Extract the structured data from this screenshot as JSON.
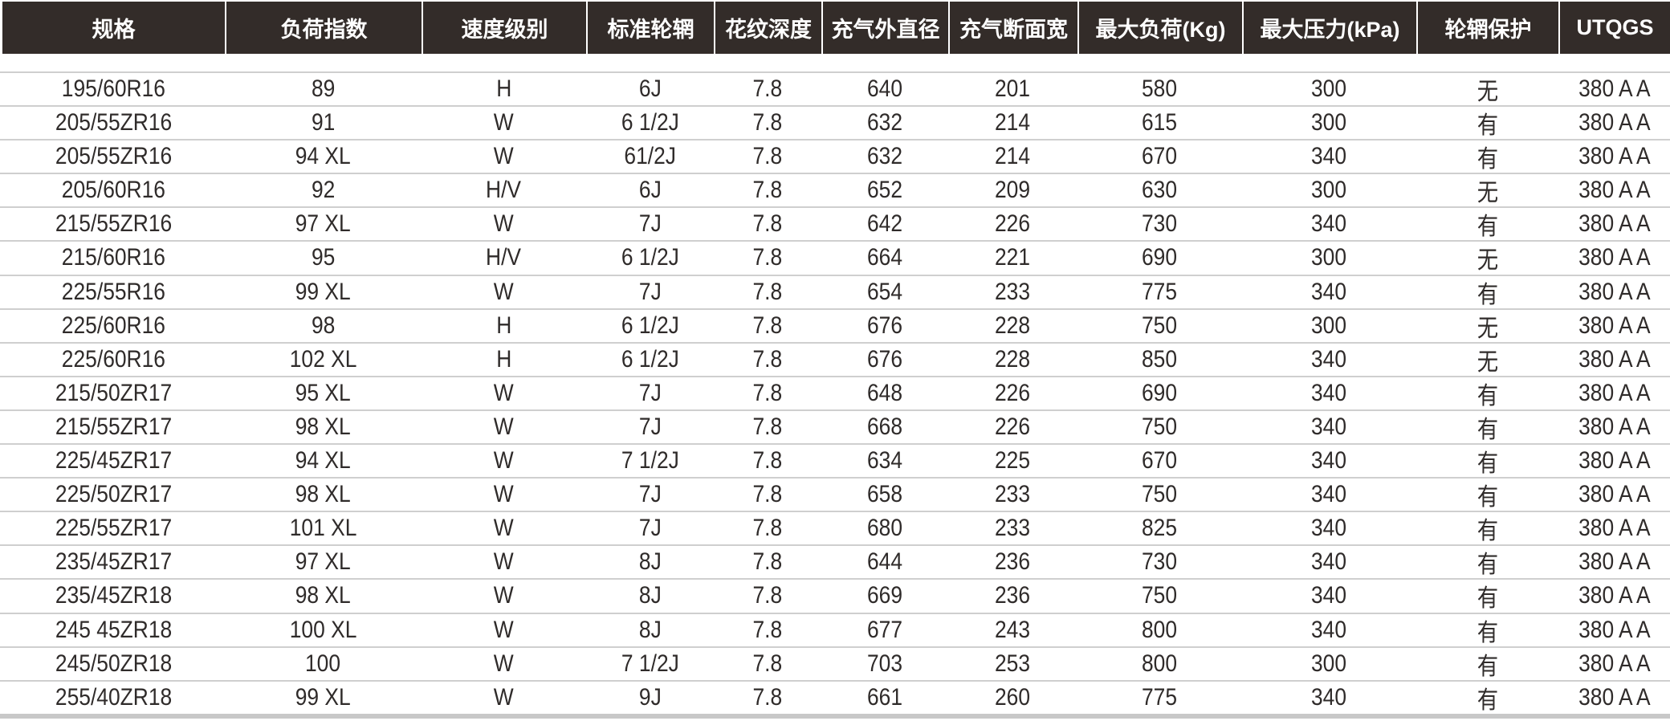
{
  "colors": {
    "header_bg": "#332c29",
    "header_text": "#ffffff",
    "row_line": "#cfcfcf",
    "text": "#2f2b2a"
  },
  "headers": [
    "规格",
    "负荷指数",
    "速度级别",
    "标准轮辋",
    "花纹深度",
    "充气外直径",
    "充气断面宽",
    "最大负荷(Kg)",
    "最大压力(kPa)",
    "轮辋保护",
    "UTQGS"
  ],
  "rows": [
    [
      "195/60R16",
      "89",
      "H",
      "6J",
      "7.8",
      "640",
      "201",
      "580",
      "300",
      "无",
      "380 A A"
    ],
    [
      "205/55ZR16",
      "91",
      "W",
      "6 1/2J",
      "7.8",
      "632",
      "214",
      "615",
      "300",
      "有",
      "380 A A"
    ],
    [
      "205/55ZR16",
      "94 XL",
      "W",
      "61/2J",
      "7.8",
      "632",
      "214",
      "670",
      "340",
      "有",
      "380 A A"
    ],
    [
      "205/60R16",
      "92",
      "H/V",
      "6J",
      "7.8",
      "652",
      "209",
      "630",
      "300",
      "无",
      "380 A A"
    ],
    [
      "215/55ZR16",
      "97 XL",
      "W",
      "7J",
      "7.8",
      "642",
      "226",
      "730",
      "340",
      "有",
      "380 A A"
    ],
    [
      "215/60R16",
      "95",
      "H/V",
      "6 1/2J",
      "7.8",
      "664",
      "221",
      "690",
      "300",
      "无",
      "380 A A"
    ],
    [
      "225/55R16",
      "99 XL",
      "W",
      "7J",
      "7.8",
      "654",
      "233",
      "775",
      "340",
      "有",
      "380 A A"
    ],
    [
      "225/60R16",
      "98",
      "H",
      "6 1/2J",
      "7.8",
      "676",
      "228",
      "750",
      "300",
      "无",
      "380 A A"
    ],
    [
      "225/60R16",
      "102 XL",
      "H",
      "6 1/2J",
      "7.8",
      "676",
      "228",
      "850",
      "340",
      "无",
      "380 A A"
    ],
    [
      "215/50ZR17",
      "95 XL",
      "W",
      "7J",
      "7.8",
      "648",
      "226",
      "690",
      "340",
      "有",
      "380 A A"
    ],
    [
      "215/55ZR17",
      "98 XL",
      "W",
      "7J",
      "7.8",
      "668",
      "226",
      "750",
      "340",
      "有",
      "380 A A"
    ],
    [
      "225/45ZR17",
      "94 XL",
      "W",
      "7 1/2J",
      "7.8",
      "634",
      "225",
      "670",
      "340",
      "有",
      "380 A A"
    ],
    [
      "225/50ZR17",
      "98 XL",
      "W",
      "7J",
      "7.8",
      "658",
      "233",
      "750",
      "340",
      "有",
      "380 A A"
    ],
    [
      "225/55ZR17",
      "101 XL",
      "W",
      "7J",
      "7.8",
      "680",
      "233",
      "825",
      "340",
      "有",
      "380 A A"
    ],
    [
      "235/45ZR17",
      "97 XL",
      "W",
      "8J",
      "7.8",
      "644",
      "236",
      "730",
      "340",
      "有",
      "380 A A"
    ],
    [
      "235/45ZR18",
      "98 XL",
      "W",
      "8J",
      "7.8",
      "669",
      "236",
      "750",
      "340",
      "有",
      "380 A A"
    ],
    [
      "245 45ZR18",
      "100 XL",
      "W",
      "8J",
      "7.8",
      "677",
      "243",
      "800",
      "340",
      "有",
      "380 A A"
    ],
    [
      "245/50ZR18",
      "100",
      "W",
      "7 1/2J",
      "7.8",
      "703",
      "253",
      "800",
      "300",
      "有",
      "380 A A"
    ],
    [
      "255/40ZR18",
      "99 XL",
      "W",
      "9J",
      "7.8",
      "661",
      "260",
      "775",
      "340",
      "有",
      "380 A A"
    ]
  ]
}
